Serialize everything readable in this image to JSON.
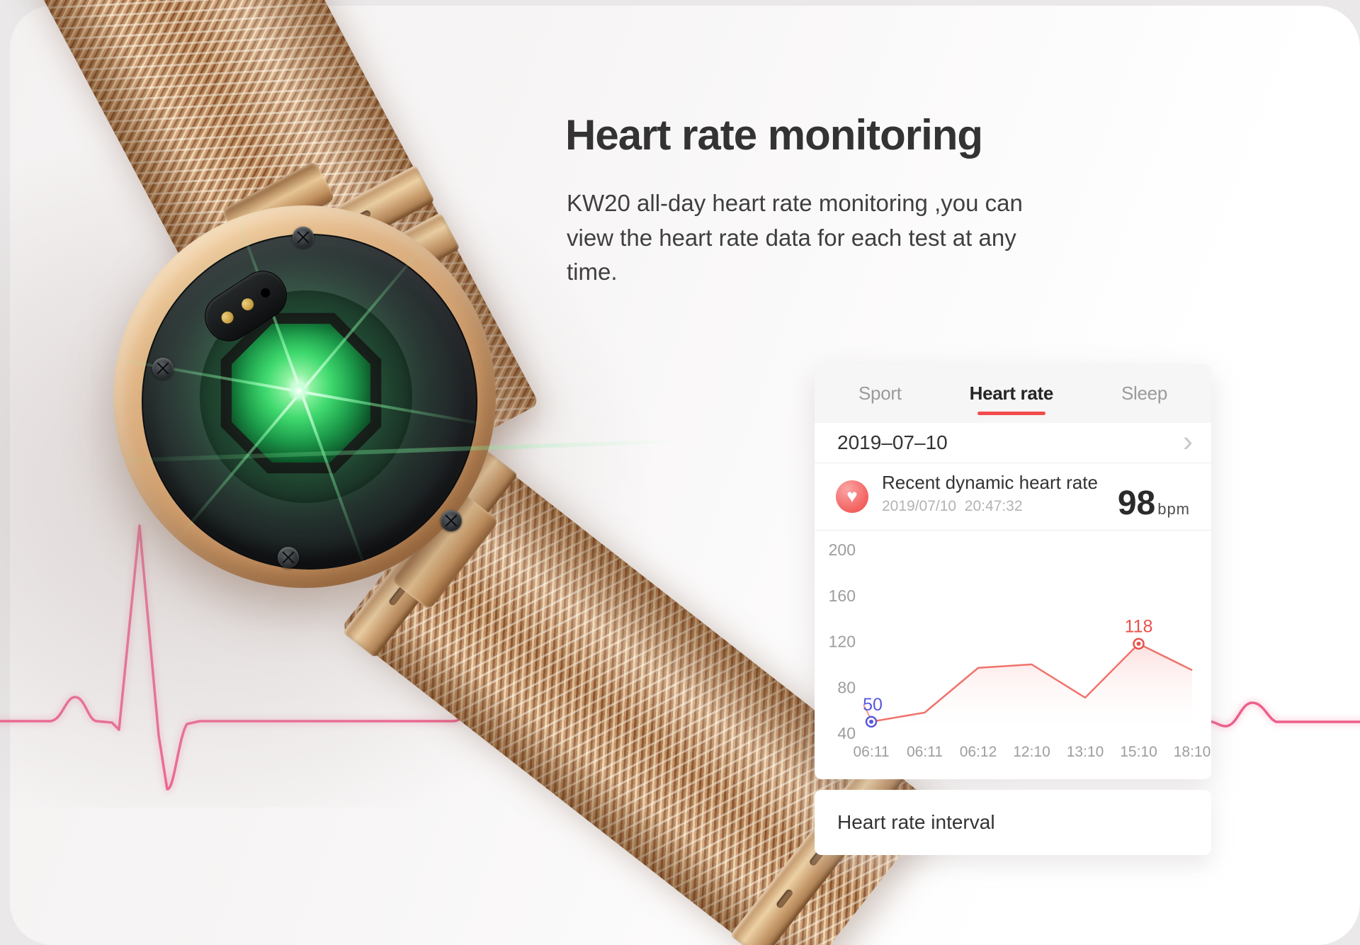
{
  "hero": {
    "title": "Heart rate monitoring",
    "description": "KW20 all-day heart rate monitoring ,you can view the heart rate data for each test at any time."
  },
  "app_card": {
    "tabs": [
      {
        "label": "Sport",
        "active": false
      },
      {
        "label": "Heart rate",
        "active": true
      },
      {
        "label": "Sleep",
        "active": false
      }
    ],
    "date_row": {
      "date": "2019–07–10",
      "chevron": "›"
    },
    "reading": {
      "title": "Recent dynamic heart rate",
      "timestamp": "2019/07/10  20:47:32",
      "value": "98",
      "unit": "bpm",
      "heart_icon": "♥"
    },
    "footer_row": {
      "label": "Heart rate interval"
    }
  },
  "chart_data": {
    "type": "line",
    "title": "",
    "x_labels": [
      "06:11",
      "06:11",
      "06:12",
      "12:10",
      "13:10",
      "15:10",
      "18:10"
    ],
    "values": [
      50,
      58,
      97,
      100,
      71,
      118,
      95
    ],
    "y_ticks": [
      200,
      160,
      120,
      80,
      40
    ],
    "ylim": [
      40,
      200
    ],
    "grid": false,
    "line_color": "#f0736c",
    "area_color": "rgba(243,135,128,0.26)",
    "tick_color": "#9d9d9d",
    "annotations": [
      {
        "index": 0,
        "label": "50",
        "color": "#5a58d8"
      },
      {
        "index": 5,
        "label": "118",
        "color": "#e9524b"
      }
    ]
  },
  "colors": {
    "accent_red": "#f24c4c",
    "ecg_pink": "#ee5f8b",
    "tab_active": "#262626",
    "tab_inactive": "#9b9b9b",
    "band_gold": "#c89468",
    "sensor_green": "#3fd96e"
  }
}
